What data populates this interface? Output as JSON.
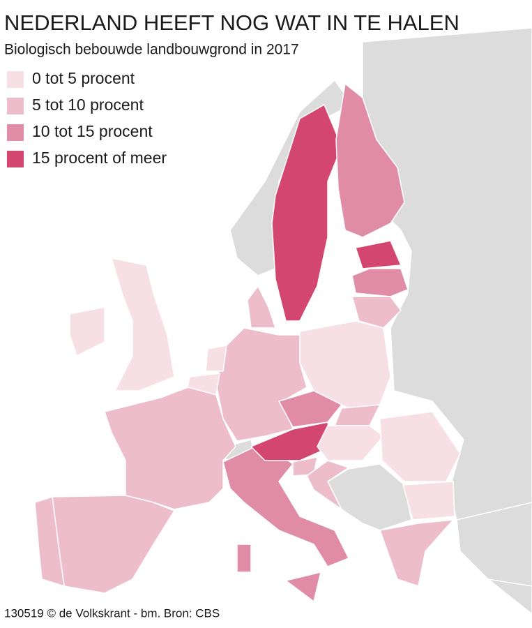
{
  "header": {
    "title": "NEDERLAND HEEFT NOG WAT IN TE HALEN",
    "subtitle": "Biologisch bebouwde landbouwgrond in 2017"
  },
  "legend": {
    "items": [
      {
        "label": "0 tot 5 procent",
        "color": "#f7dfe6"
      },
      {
        "label": "5 tot 10 procent",
        "color": "#edbdcb"
      },
      {
        "label": "10 tot 15 procent",
        "color": "#e08ca6"
      },
      {
        "label": "15 procent of meer",
        "color": "#d2466f"
      }
    ]
  },
  "footer": {
    "credit": "130519 © de Volkskrant - bm.  Bron: CBS"
  }
}
